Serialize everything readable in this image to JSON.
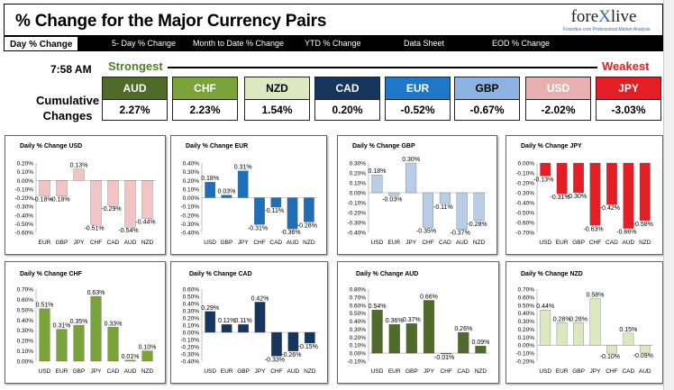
{
  "header": {
    "title": "% Change for the Major Currency Pairs"
  },
  "logo": {
    "brand_a": "fore",
    "brand_x": "X",
    "brand_b": "live",
    "tagline": "Forexlive.com Professional Market Analysis"
  },
  "nav": {
    "tabs": [
      "Day % Change",
      "5- Day % Change",
      "Month to Date % Change",
      "YTD % Change",
      "Data Sheet",
      "EOD % Change"
    ]
  },
  "time": "7:58 AM",
  "strongest_label": "Strongest",
  "weakest_label": "Weakest",
  "cumulative_label_1": "Cumulative",
  "cumulative_label_2": "Changes",
  "rankings": [
    {
      "currency": "AUD",
      "value": "2.27%",
      "color": "#4e6b2a",
      "text_color": "#ffffff"
    },
    {
      "currency": "CHF",
      "value": "2.23%",
      "color": "#7aa33a",
      "text_color": "#ffffff"
    },
    {
      "currency": "NZD",
      "value": "1.54%",
      "color": "#dbe8c0",
      "text_color": "#000000"
    },
    {
      "currency": "CAD",
      "value": "0.20%",
      "color": "#17365d",
      "text_color": "#ffffff"
    },
    {
      "currency": "EUR",
      "value": "-0.52%",
      "color": "#1f77c8",
      "text_color": "#ffffff"
    },
    {
      "currency": "GBP",
      "value": "-0.67%",
      "color": "#8db3e2",
      "text_color": "#000000"
    },
    {
      "currency": "USD",
      "value": "-2.02%",
      "color": "#e6b0b0",
      "text_color": "#ffffff"
    },
    {
      "currency": "JPY",
      "value": "-3.03%",
      "color": "#e31e24",
      "text_color": "#ffffff"
    }
  ],
  "chart_data": [
    {
      "type": "bar",
      "title": "Daily % Change USD",
      "categories": [
        "EUR",
        "GBP",
        "JPY",
        "CHF",
        "CAD",
        "AUD",
        "NZD"
      ],
      "values": [
        -0.18,
        -0.18,
        0.13,
        -0.51,
        -0.29,
        -0.54,
        -0.44
      ],
      "ylim": [
        -0.6,
        0.2
      ],
      "ticks": [
        "0.20%",
        "0.10%",
        "0.00%",
        "-0.10%",
        "-0.20%",
        "-0.30%",
        "-0.40%",
        "-0.50%",
        "-0.60%"
      ],
      "labels": [
        "-0.18%",
        "-0.18%",
        "0.13%",
        "-0.51%",
        "-0.29%",
        "-0.54%",
        "-0.44%"
      ],
      "color": "#f2c4c4"
    },
    {
      "type": "bar",
      "title": "Daily % Change EUR",
      "categories": [
        "USD",
        "GBP",
        "JPY",
        "CHF",
        "CAD",
        "AUD",
        "NZD"
      ],
      "values": [
        0.18,
        0.03,
        0.31,
        -0.31,
        -0.11,
        -0.36,
        -0.28
      ],
      "ylim": [
        -0.4,
        0.4
      ],
      "ticks": [
        "0.40%",
        "0.30%",
        "0.20%",
        "0.10%",
        "0.00%",
        "-0.10%",
        "-0.20%",
        "-0.30%",
        "-0.40%"
      ],
      "labels": [
        "0.18%",
        "0.03%",
        "0.31%",
        "-0.31%",
        "-0.11%",
        "-0.36%",
        "-0.28%"
      ],
      "color": "#1f6fb8"
    },
    {
      "type": "bar",
      "title": "Daily % Change GBP",
      "categories": [
        "USD",
        "EUR",
        "JPY",
        "CHF",
        "CAD",
        "AUD",
        "NZD"
      ],
      "values": [
        0.18,
        -0.03,
        0.3,
        -0.35,
        -0.11,
        -0.37,
        -0.28
      ],
      "ylim": [
        -0.4,
        0.3
      ],
      "ticks": [
        "0.30%",
        "0.20%",
        "0.10%",
        "0.00%",
        "-0.10%",
        "-0.20%",
        "-0.30%",
        "-0.40%"
      ],
      "labels": [
        "0.18%",
        "-0.03%",
        "0.30%",
        "-0.35%",
        "-0.11%",
        "-0.37%",
        "-0.28%"
      ],
      "color": "#b8cde8"
    },
    {
      "type": "bar",
      "title": "Daily % Change JPY",
      "categories": [
        "USD",
        "EUR",
        "GBP",
        "CHF",
        "CAD",
        "AUD",
        "NZD"
      ],
      "values": [
        -0.13,
        -0.31,
        -0.3,
        -0.63,
        -0.42,
        -0.66,
        -0.58
      ],
      "ylim": [
        -0.7,
        0.0
      ],
      "ticks": [
        "0.00%",
        "-0.10%",
        "-0.20%",
        "-0.30%",
        "-0.40%",
        "-0.50%",
        "-0.60%",
        "-0.70%"
      ],
      "labels": [
        "-0.13%",
        "-0.31%",
        "-0.30%",
        "-0.63%",
        "-0.42%",
        "-0.66%",
        "-0.58%"
      ],
      "color": "#e31e24"
    },
    {
      "type": "bar",
      "title": "Daily % Change CHF",
      "categories": [
        "USD",
        "EUR",
        "GBP",
        "JPY",
        "CAD",
        "AUD",
        "NZD"
      ],
      "values": [
        0.51,
        0.31,
        0.35,
        0.63,
        0.33,
        0.01,
        0.1
      ],
      "ylim": [
        0.0,
        0.7
      ],
      "ticks": [
        "0.70%",
        "0.60%",
        "0.50%",
        "0.40%",
        "0.30%",
        "0.20%",
        "0.10%",
        "0.00%"
      ],
      "labels": [
        "0.51%",
        "0.31%",
        "0.35%",
        "0.63%",
        "0.33%",
        "0.01%",
        "0.10%"
      ],
      "color": "#7aa33a"
    },
    {
      "type": "bar",
      "title": "Daily % Change CAD",
      "categories": [
        "USD",
        "EUR",
        "GBP",
        "JPY",
        "CHF",
        "AUD",
        "NZD"
      ],
      "values": [
        0.29,
        0.11,
        0.11,
        0.42,
        -0.33,
        -0.26,
        -0.15
      ],
      "ylim": [
        -0.4,
        0.6
      ],
      "ticks": [
        "0.60%",
        "0.50%",
        "0.40%",
        "0.30%",
        "0.20%",
        "0.10%",
        "0.00%",
        "-0.10%",
        "-0.20%",
        "-0.30%",
        "-0.40%"
      ],
      "labels": [
        "0.29%",
        "0.11%",
        "0.11%",
        "0.42%",
        "-0.33%",
        "-0.26%",
        "-0.15%"
      ],
      "color": "#17365d"
    },
    {
      "type": "bar",
      "title": "Daily % Change AUD",
      "categories": [
        "USD",
        "EUR",
        "GBP",
        "JPY",
        "CHF",
        "CAD",
        "NZD"
      ],
      "values": [
        0.54,
        0.36,
        0.37,
        0.66,
        -0.01,
        0.26,
        0.09
      ],
      "ylim": [
        -0.1,
        0.8
      ],
      "ticks": [
        "0.80%",
        "0.70%",
        "0.60%",
        "0.50%",
        "0.40%",
        "0.30%",
        "0.20%",
        "0.10%",
        "0.00%",
        "-0.10%"
      ],
      "labels": [
        "0.54%",
        "0.36%",
        "0.37%",
        "0.66%",
        "-0.01%",
        "0.26%",
        "0.09%"
      ],
      "color": "#4e6b2a"
    },
    {
      "type": "bar",
      "title": "Daily % Change NZD",
      "categories": [
        "USD",
        "EUR",
        "GBP",
        "JPY",
        "CHF",
        "CAD",
        "AUD"
      ],
      "values": [
        0.44,
        0.28,
        0.28,
        0.58,
        -0.1,
        0.15,
        -0.09
      ],
      "ylim": [
        -0.2,
        0.7
      ],
      "ticks": [
        "0.70%",
        "0.60%",
        "0.50%",
        "0.40%",
        "0.30%",
        "0.20%",
        "0.10%",
        "0.00%",
        "-0.10%",
        "-0.20%"
      ],
      "labels": [
        "0.44%",
        "0.28%",
        "0.28%",
        "0.58%",
        "-0.10%",
        "0.15%",
        "-0.09%"
      ],
      "color": "#dbe8c0"
    }
  ]
}
